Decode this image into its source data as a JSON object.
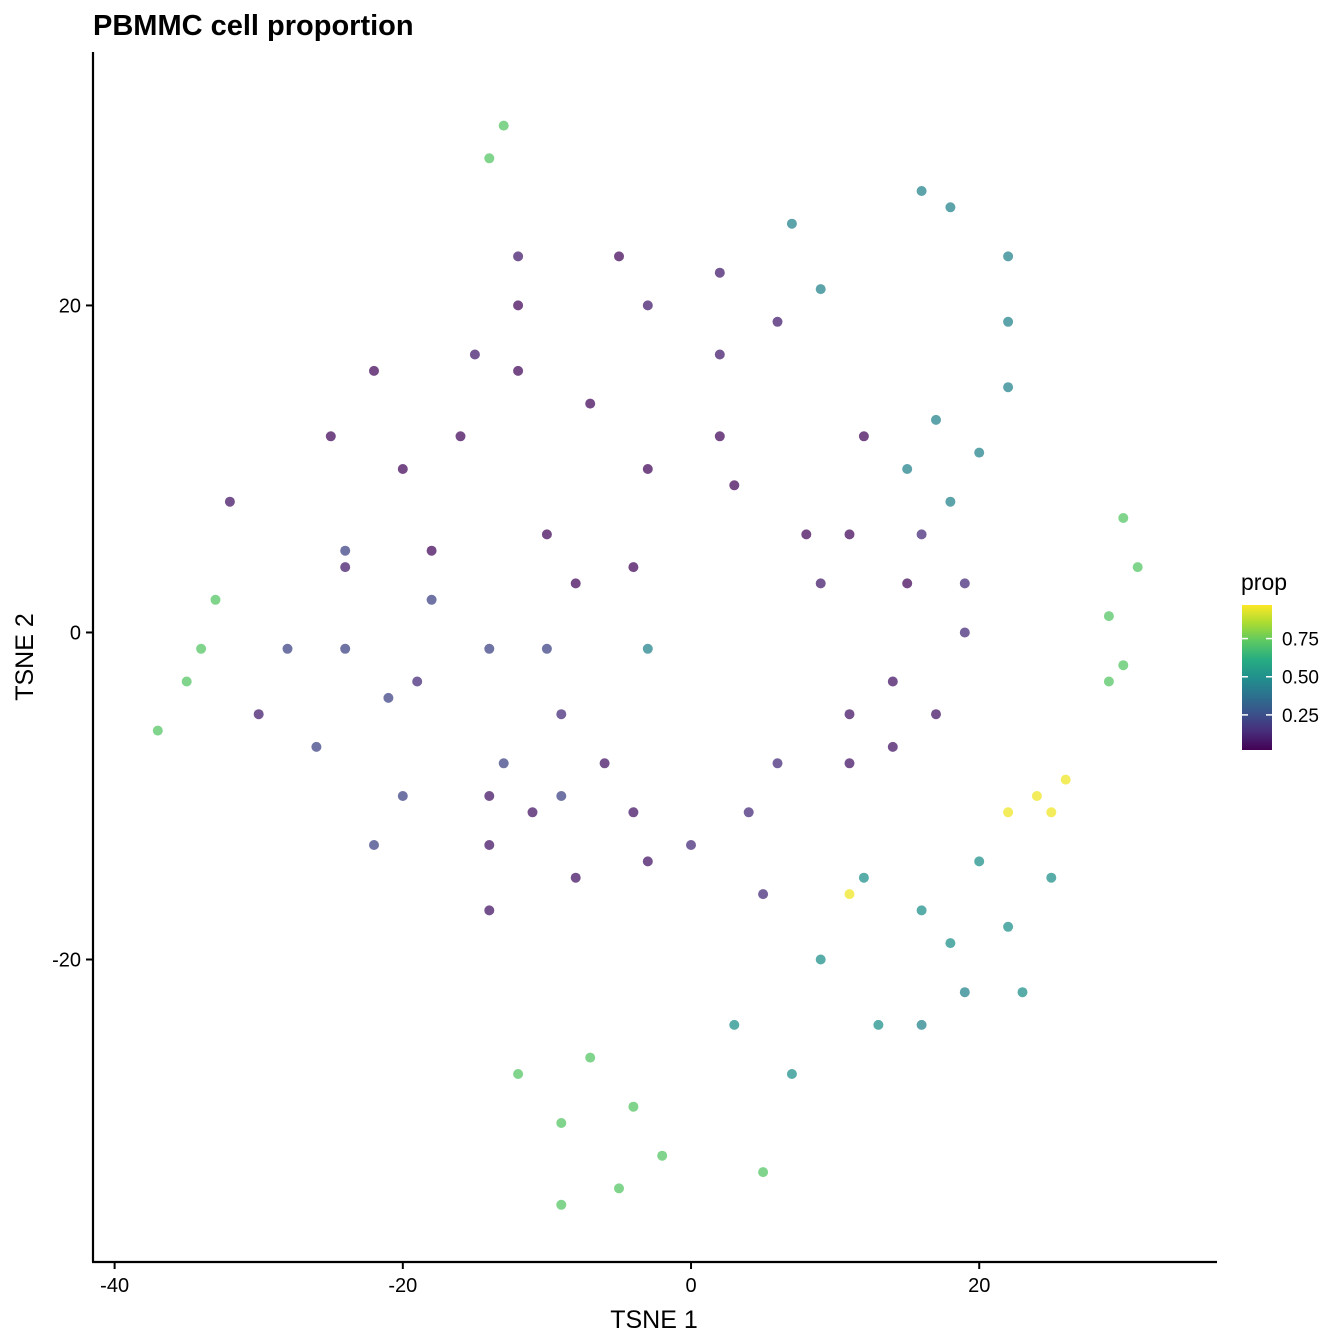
{
  "chart_data": {
    "type": "scatter",
    "title": "PBMMC cell proportion",
    "xlabel": "TSNE 1",
    "ylabel": "TSNE 2",
    "xlim": [
      -41.5,
      36.5
    ],
    "ylim": [
      -38.5,
      35.5
    ],
    "x_ticks": [
      -40,
      -20,
      0,
      20
    ],
    "x_tick_labels": [
      "-40",
      "-20",
      "0",
      "20"
    ],
    "y_ticks": [
      -20,
      0,
      20
    ],
    "y_tick_labels": [
      "-20",
      "0",
      "20"
    ],
    "grid": false,
    "legend": {
      "title": "prop",
      "placement": "right",
      "colormap": "viridis",
      "range": [
        0.02,
        0.97
      ],
      "ticks": [
        0.25,
        0.5,
        0.75
      ],
      "tick_labels": [
        "0.25",
        "0.50",
        "0.75"
      ]
    },
    "series": [
      {
        "prop": 0.05,
        "points": [
          [
            -16,
            12
          ],
          [
            -12,
            16
          ],
          [
            -7,
            14
          ],
          [
            -3,
            10
          ],
          [
            2,
            12
          ],
          [
            -10,
            6
          ],
          [
            -20,
            10
          ],
          [
            -22,
            16
          ],
          [
            -8,
            3
          ],
          [
            -4,
            4
          ],
          [
            3,
            9
          ],
          [
            8,
            6
          ],
          [
            12,
            12
          ],
          [
            11,
            6
          ],
          [
            15,
            3
          ],
          [
            -12,
            20
          ],
          [
            -5,
            23
          ],
          [
            -18,
            5
          ],
          [
            -25,
            12
          ]
        ]
      },
      {
        "prop": 0.08,
        "points": [
          [
            14,
            -3
          ],
          [
            11,
            -5
          ],
          [
            14,
            -7
          ],
          [
            11,
            -8
          ],
          [
            17,
            -5
          ],
          [
            -14,
            -10
          ],
          [
            -14,
            -13
          ],
          [
            -8,
            -15
          ],
          [
            -3,
            -14
          ],
          [
            -11,
            -11
          ],
          [
            -6,
            -8
          ],
          [
            -4,
            -11
          ],
          [
            -14,
            -17
          ],
          [
            -32,
            8
          ]
        ]
      },
      {
        "prop": 0.1,
        "points": [
          [
            -3,
            20
          ],
          [
            2,
            17
          ],
          [
            2,
            22
          ],
          [
            6,
            19
          ],
          [
            -12,
            23
          ],
          [
            -15,
            17
          ],
          [
            -24,
            4
          ],
          [
            -30,
            -5
          ],
          [
            9,
            3
          ]
        ]
      },
      {
        "prop": 0.14,
        "points": [
          [
            5,
            -16
          ],
          [
            4,
            -11
          ],
          [
            -9,
            -5
          ],
          [
            6,
            -8
          ],
          [
            0,
            -13
          ],
          [
            -19,
            -3
          ],
          [
            19,
            3
          ],
          [
            19,
            0
          ],
          [
            16,
            6
          ]
        ]
      },
      {
        "prop": 0.22,
        "points": [
          [
            -24,
            -1
          ],
          [
            -21,
            -4
          ],
          [
            -26,
            -7
          ],
          [
            -20,
            -10
          ],
          [
            -22,
            -13
          ],
          [
            -18,
            2
          ],
          [
            -24,
            5
          ],
          [
            -10,
            -1
          ],
          [
            -14,
            -1
          ],
          [
            -28,
            -1
          ],
          [
            -13,
            -8
          ],
          [
            -9,
            -10
          ]
        ]
      },
      {
        "prop": 0.45,
        "points": [
          [
            15,
            10
          ],
          [
            18,
            8
          ],
          [
            20,
            11
          ],
          [
            17,
            13
          ],
          [
            22,
            15
          ],
          [
            22,
            19
          ],
          [
            18,
            26
          ],
          [
            22,
            23
          ],
          [
            16,
            27
          ],
          [
            7,
            25
          ],
          [
            9,
            21
          ],
          [
            -3,
            -1
          ],
          [
            16,
            -24
          ],
          [
            19,
            -22
          ]
        ]
      },
      {
        "prop": 0.5,
        "points": [
          [
            7,
            -27
          ],
          [
            3,
            -24
          ],
          [
            9,
            -20
          ],
          [
            13,
            -24
          ],
          [
            16,
            -17
          ],
          [
            20,
            -14
          ],
          [
            22,
            -18
          ],
          [
            25,
            -15
          ],
          [
            12,
            -15
          ],
          [
            18,
            -19
          ],
          [
            23,
            -22
          ]
        ]
      },
      {
        "prop": 0.72,
        "points": [
          [
            -35,
            -3
          ],
          [
            -37,
            -6
          ],
          [
            -34,
            -1
          ],
          [
            -33,
            2
          ],
          [
            -12,
            -27
          ],
          [
            -7,
            -26
          ],
          [
            -4,
            -29
          ],
          [
            -2,
            -32
          ],
          [
            -9,
            -30
          ],
          [
            -5,
            -34
          ],
          [
            5,
            -33
          ],
          [
            30,
            -2
          ],
          [
            29,
            -3
          ],
          [
            29,
            1
          ],
          [
            31,
            4
          ],
          [
            30,
            7
          ],
          [
            -14,
            29
          ],
          [
            -13,
            31
          ],
          [
            -9,
            -35
          ]
        ]
      },
      {
        "prop": 0.95,
        "points": [
          [
            24,
            -10
          ],
          [
            25,
            -11
          ],
          [
            22,
            -11
          ],
          [
            11,
            -16
          ],
          [
            26,
            -9
          ]
        ]
      }
    ]
  }
}
